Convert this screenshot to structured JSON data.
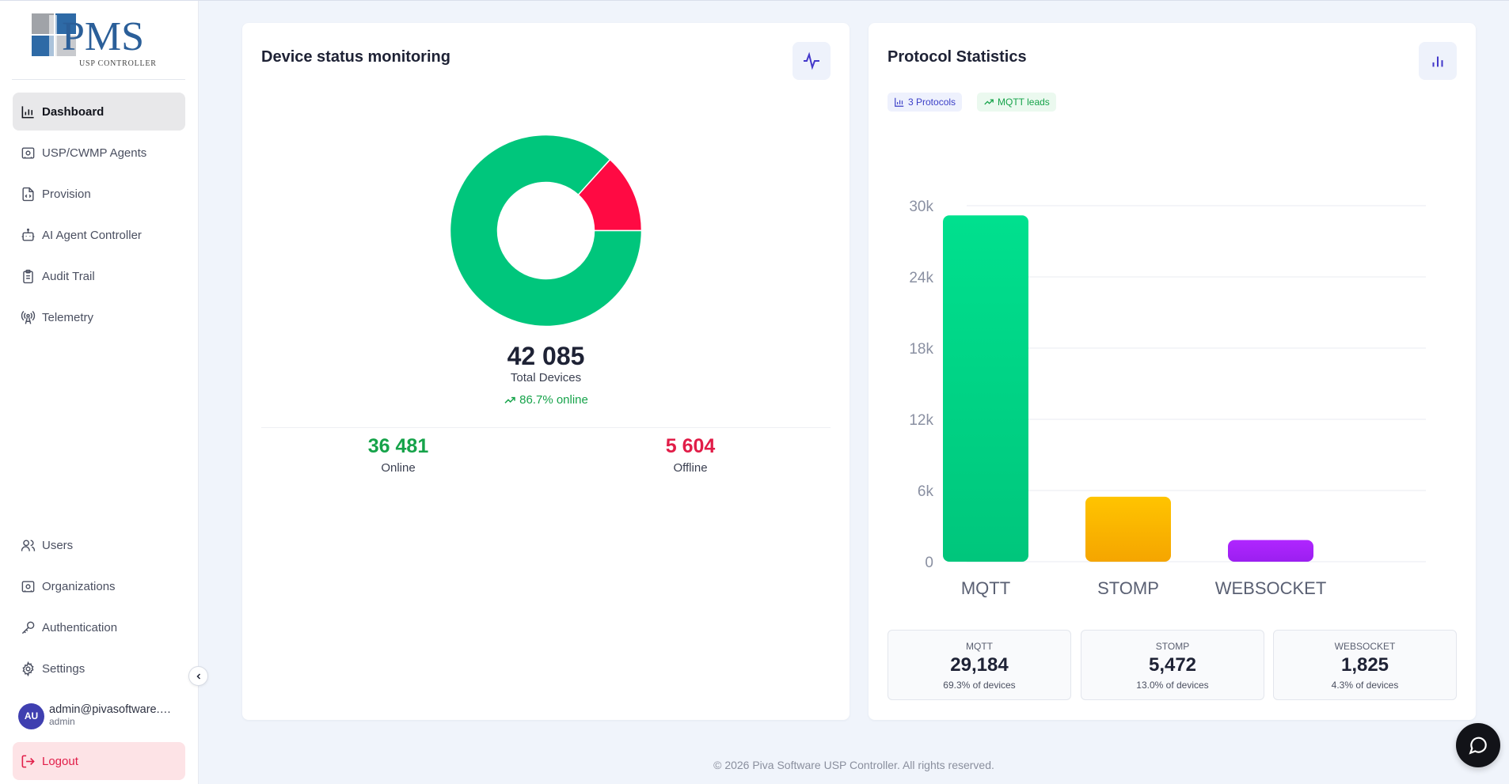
{
  "app": {
    "logo_text": "PMS",
    "logo_subtext": "USP CONTROLLER"
  },
  "sidebar": {
    "items": [
      {
        "label": "Dashboard",
        "icon": "bar-chart-icon",
        "active": true
      },
      {
        "label": "USP/CWMP Agents",
        "icon": "agent-icon"
      },
      {
        "label": "Provision",
        "icon": "file-code-icon"
      },
      {
        "label": "AI Agent Controller",
        "icon": "bot-icon"
      },
      {
        "label": "Audit Trail",
        "icon": "clipboard-icon"
      },
      {
        "label": "Telemetry",
        "icon": "radio-tower-icon"
      }
    ],
    "bottom_items": [
      {
        "label": "Users",
        "icon": "users-icon"
      },
      {
        "label": "Organizations",
        "icon": "building-icon"
      },
      {
        "label": "Authentication",
        "icon": "key-icon"
      },
      {
        "label": "Settings",
        "icon": "gear-icon"
      }
    ],
    "user": {
      "initials": "AU",
      "email": "admin@pivasoftware.com",
      "role": "admin"
    },
    "logout_label": "Logout"
  },
  "device_status": {
    "title": "Device status monitoring",
    "total": "42 085",
    "total_label": "Total Devices",
    "online_pct": "86.7% online",
    "online": "36 481",
    "online_label": "Online",
    "offline": "5 604",
    "offline_label": "Offline",
    "colors": {
      "online": "#00c67c",
      "offline": "#ff0a43"
    }
  },
  "protocols": {
    "title": "Protocol Statistics",
    "badge_count": "3 Protocols",
    "badge_lead": "MQTT leads",
    "summary": [
      {
        "name": "MQTT",
        "value": "29,184",
        "sub": "69.3% of devices"
      },
      {
        "name": "STOMP",
        "value": "5,472",
        "sub": "13.0% of devices"
      },
      {
        "name": "WEBSOCKET",
        "value": "1,825",
        "sub": "4.3% of devices"
      }
    ]
  },
  "chart_data": [
    {
      "type": "pie",
      "categories": [
        "Online",
        "Offline"
      ],
      "values": [
        36481,
        5604
      ],
      "colors": [
        "#00c67c",
        "#ff0a43"
      ]
    },
    {
      "type": "bar",
      "categories": [
        "MQTT",
        "STOMP",
        "WEBSOCKET"
      ],
      "values": [
        29184,
        5472,
        1825
      ],
      "colors": [
        "#00c67c",
        "#f5a500",
        "#9b1ff0"
      ],
      "yticks": [
        "0",
        "6k",
        "12k",
        "18k",
        "24k",
        "30k"
      ],
      "ylim": [
        0,
        30000
      ],
      "grid": true
    }
  ],
  "footer": "© 2026 Piva Software USP Controller. All rights reserved."
}
